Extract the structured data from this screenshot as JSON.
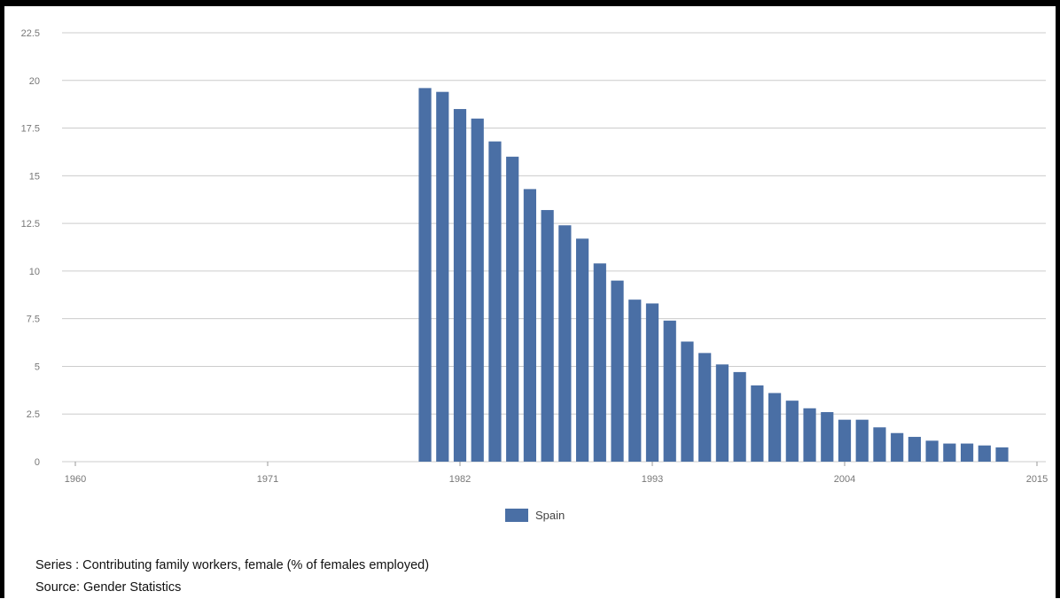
{
  "chart_data": {
    "type": "bar",
    "x": [
      1980,
      1981,
      1982,
      1983,
      1984,
      1985,
      1986,
      1987,
      1988,
      1989,
      1990,
      1991,
      1992,
      1993,
      1994,
      1995,
      1996,
      1997,
      1998,
      1999,
      2000,
      2001,
      2002,
      2003,
      2004,
      2005,
      2006,
      2007,
      2008,
      2009,
      2010,
      2011,
      2012,
      2013
    ],
    "series": [
      {
        "name": "Spain",
        "values": [
          19.6,
          19.4,
          18.5,
          18.0,
          16.8,
          16.0,
          14.3,
          13.2,
          12.4,
          11.7,
          10.4,
          9.5,
          8.5,
          8.3,
          7.4,
          6.3,
          5.7,
          5.1,
          4.7,
          4.0,
          3.6,
          3.2,
          2.8,
          2.6,
          2.2,
          2.2,
          1.8,
          1.5,
          1.3,
          1.1,
          0.95,
          0.95,
          0.85,
          0.75
        ]
      }
    ],
    "xlim": [
      1960,
      2015
    ],
    "ylim": [
      0,
      22.5
    ],
    "x_ticks": [
      "1960",
      "1971",
      "1982",
      "1993",
      "2004",
      "2015"
    ],
    "y_ticks": [
      "0",
      "2.5",
      "5",
      "7.5",
      "10",
      "12.5",
      "15",
      "17.5",
      "20",
      "22.5"
    ],
    "grid": true,
    "legend_position": "bottom",
    "colors": {
      "bar": "#4a6fa5"
    }
  },
  "legend": {
    "label": "Spain"
  },
  "footer": {
    "series": "Series : Contributing family workers, female (% of females employed)",
    "source": "Source: Gender Statistics"
  }
}
